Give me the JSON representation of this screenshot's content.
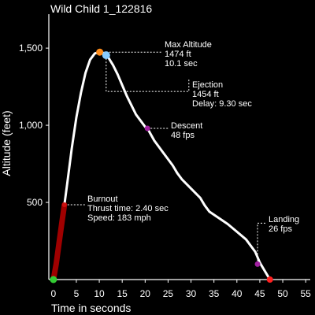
{
  "chart_data": {
    "type": "line",
    "title": "Wild Child 1_122816",
    "xlabel": "Time in seconds",
    "ylabel": "Altitude (feet)",
    "xlim": [
      -1,
      56
    ],
    "ylim": [
      0,
      1720
    ],
    "x_ticks": [
      0,
      5,
      10,
      15,
      20,
      25,
      30,
      35,
      40,
      45,
      50,
      55
    ],
    "x_tick_labels": [
      "0",
      "5",
      "10",
      "15",
      "20",
      "25",
      "30",
      "35",
      "40",
      "45",
      "50",
      "55"
    ],
    "y_ticks": [
      500,
      1000,
      1500
    ],
    "y_tick_labels": [
      "500",
      "1,000",
      "1,500"
    ],
    "grid": false,
    "colors": {
      "flight_path": "#ffffff",
      "thrust_path": "#a00000",
      "launch": "#33cc33",
      "burnout": "#cc1111",
      "apogee": "#ff8c1a",
      "ejection": "#88ccff",
      "descent": "#a020a0",
      "landing_rate": "#a020a0",
      "touchdown": "#ff2020",
      "axis": "#ffffff"
    },
    "thrust_phase": {
      "x": [
        0,
        0.6,
        1.2,
        1.8,
        2.4
      ],
      "y": [
        0,
        100,
        230,
        360,
        485
      ]
    },
    "flight_path": {
      "x": [
        2.4,
        3,
        4,
        5,
        6,
        7,
        8,
        9,
        10,
        10.5,
        11,
        11.5,
        12,
        13,
        14,
        15,
        16,
        17,
        18,
        19,
        20,
        20.5,
        22,
        24,
        26,
        27,
        28,
        30,
        32,
        33,
        34,
        36,
        38,
        40,
        42,
        44,
        45,
        46,
        47.2
      ],
      "y": [
        485,
        620,
        850,
        1050,
        1210,
        1340,
        1425,
        1465,
        1474,
        1472,
        1462,
        1454,
        1438,
        1390,
        1330,
        1260,
        1190,
        1130,
        1070,
        1030,
        990,
        980,
        900,
        820,
        740,
        690,
        650,
        590,
        530,
        480,
        440,
        400,
        360,
        310,
        260,
        180,
        110,
        60,
        0
      ]
    },
    "events": [
      {
        "name": "launch",
        "x": 0,
        "y": 0,
        "lines": []
      },
      {
        "name": "burnout",
        "x": 2.4,
        "y": 485,
        "lines": [
          "Burnout",
          "Thrust time: 2.40 sec",
          "Speed: 183 mph"
        ]
      },
      {
        "name": "apogee",
        "x": 10.1,
        "y": 1474,
        "lines": [
          "Max Altitude",
          "1474 ft",
          "10.1  sec"
        ]
      },
      {
        "name": "ejection",
        "x": 11.5,
        "y": 1454,
        "lines": [
          "Ejection",
          "1454 ft",
          "Delay:  9.30 sec"
        ]
      },
      {
        "name": "descent",
        "x": 20.5,
        "y": 980,
        "lines": [
          "Descent",
          "48 fps"
        ]
      },
      {
        "name": "landing_rate",
        "x": 44.5,
        "y": 100,
        "lines": [
          "Landing",
          "26 fps"
        ]
      },
      {
        "name": "touchdown",
        "x": 47.2,
        "y": 0,
        "lines": []
      }
    ]
  }
}
